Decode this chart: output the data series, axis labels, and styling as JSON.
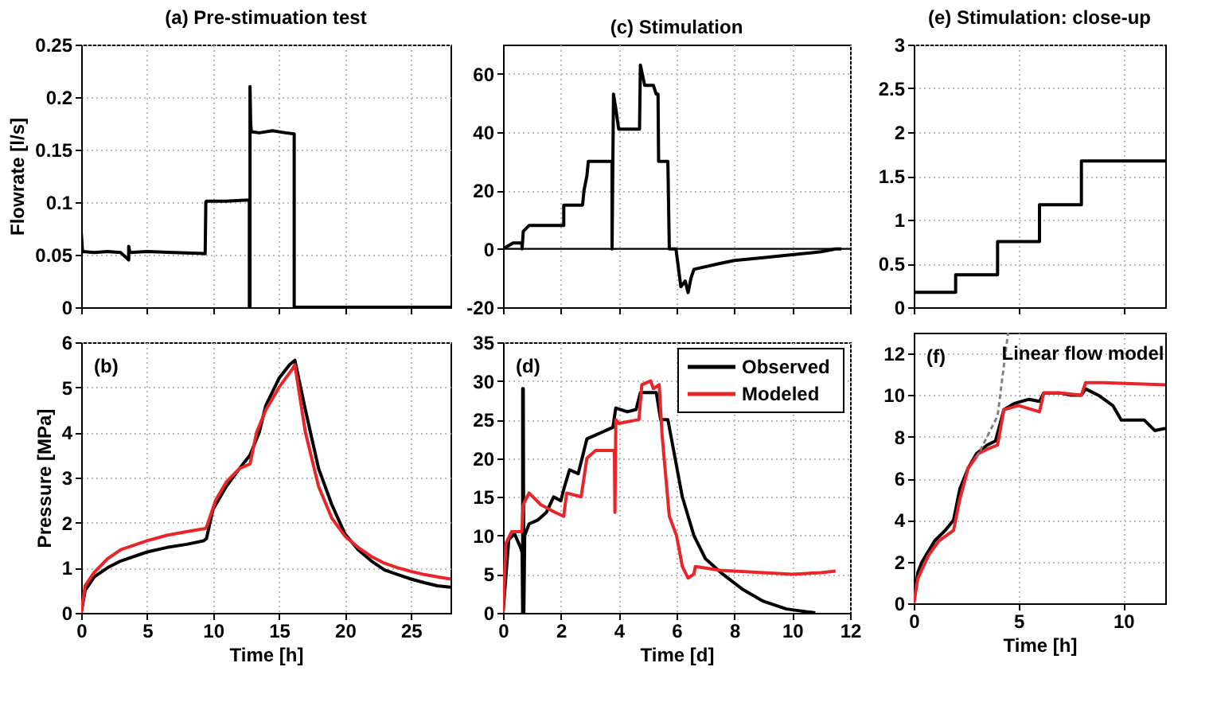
{
  "chart_data": [
    {
      "type": "line",
      "title": "(a) Pre-stimuation test",
      "ylabel": "Flowrate [l/s]",
      "xlim": [
        0,
        28
      ],
      "xticks": [
        0,
        5,
        10,
        15,
        20,
        25
      ],
      "ylim": [
        0,
        0.25
      ],
      "yticks": [
        0,
        0.05,
        0.1,
        0.15,
        0.2,
        0.25
      ],
      "grid": true,
      "tick_labels": "y",
      "series": [
        {
          "color": "#000000",
          "x": [
            0,
            0,
            0.1,
            1,
            2,
            3,
            3.6,
            3.6,
            3.7,
            5,
            7,
            9.4,
            9.45,
            9.5,
            11,
            12.7,
            12.75,
            12.75,
            12.8,
            12.8,
            12.85,
            12.9,
            13.5,
            14.5,
            15.5,
            16.15,
            16.15,
            20,
            28
          ],
          "values": [
            0,
            0.072,
            0.053,
            0.052,
            0.053,
            0.052,
            0.045,
            0.058,
            0.052,
            0.053,
            0.052,
            0.051,
            0.1,
            0.101,
            0.101,
            0.102,
            0.102,
            0,
            0,
            0.21,
            0.175,
            0.167,
            0.166,
            0.168,
            0.166,
            0.165,
            0,
            0,
            0
          ]
        }
      ]
    },
    {
      "type": "line",
      "title": "(c) Stimulation",
      "xlim": [
        0,
        12
      ],
      "xticks": [
        0,
        2,
        4,
        6,
        8,
        10,
        12
      ],
      "ylim": [
        -20,
        70
      ],
      "yticks": [
        -20,
        0,
        20,
        40,
        60
      ],
      "grid": true,
      "tick_labels": "y",
      "ref_lines": [
        {
          "axis": "y",
          "value": 0,
          "color": "#000000"
        }
      ],
      "series": [
        {
          "color": "#000000",
          "x": [
            0,
            0.35,
            0.65,
            0.66,
            0.7,
            0.9,
            2.1,
            2.1,
            2.75,
            2.8,
            2.9,
            2.95,
            3.77,
            3.77,
            3.82,
            3.9,
            4.0,
            4.72,
            4.75,
            4.9,
            5.2,
            5.3,
            5.36,
            5.38,
            5.7,
            5.75,
            5.98,
            6.15,
            6.3,
            6.4,
            6.5,
            6.6,
            7.5,
            8,
            9,
            10,
            11,
            11.5,
            11.7
          ],
          "values": [
            0,
            2,
            2,
            0,
            6,
            8,
            8,
            15,
            15,
            20,
            25,
            30,
            30,
            0,
            53,
            48,
            41,
            41,
            63,
            56,
            56,
            53,
            53,
            30,
            30,
            0,
            0,
            -13,
            -11,
            -15,
            -10,
            -7,
            -5,
            -4,
            -3,
            -2,
            -1,
            0,
            0
          ]
        }
      ]
    },
    {
      "type": "step",
      "title": "(e) Stimulation: close-up",
      "xlim": [
        0,
        12
      ],
      "xticks": [
        0,
        5,
        10
      ],
      "ylim": [
        0,
        3
      ],
      "yticks": [
        0,
        0.5,
        1,
        1.5,
        2,
        2.5,
        3
      ],
      "grid": true,
      "tick_labels": "y",
      "series": [
        {
          "color": "#000000",
          "x": [
            0,
            2,
            4,
            6,
            8,
            12
          ],
          "values": [
            0.17,
            0.37,
            0.75,
            1.17,
            1.67,
            1.67
          ]
        }
      ]
    },
    {
      "type": "line",
      "ylabel": "Pressure [MPa]",
      "xlabel": "Time [h]",
      "annotations": [
        "(b)"
      ],
      "xlim": [
        0,
        28
      ],
      "xticks": [
        0,
        5,
        10,
        15,
        20,
        25
      ],
      "ylim": [
        0,
        6
      ],
      "yticks": [
        0,
        1,
        2,
        3,
        4,
        5,
        6
      ],
      "grid": true,
      "series": [
        {
          "color": "#000000",
          "x": [
            0,
            0.3,
            1,
            2,
            3,
            5,
            6.5,
            8,
            9.3,
            9.5,
            10,
            11,
            12,
            12.8,
            13.5,
            14,
            15,
            15.8,
            16.2,
            17,
            18,
            19,
            20,
            21,
            22,
            23,
            24,
            25,
            26,
            27,
            28
          ],
          "values": [
            0,
            0.5,
            0.8,
            1.0,
            1.15,
            1.35,
            1.45,
            1.52,
            1.6,
            1.65,
            2.3,
            2.8,
            3.2,
            3.5,
            4.0,
            4.6,
            5.2,
            5.5,
            5.6,
            4.5,
            3.2,
            2.4,
            1.75,
            1.4,
            1.15,
            0.95,
            0.85,
            0.75,
            0.67,
            0.6,
            0.57
          ]
        },
        {
          "color": "#e8262a",
          "x": [
            0,
            0.3,
            1,
            2,
            3,
            5,
            6.5,
            8,
            9.4,
            9.5,
            10.2,
            11,
            12,
            12.8,
            13.3,
            14,
            15,
            16,
            16.2,
            17,
            18,
            19,
            20,
            21,
            22,
            23,
            24,
            25,
            26,
            27,
            28
          ],
          "values": [
            0,
            0.6,
            0.9,
            1.2,
            1.4,
            1.6,
            1.72,
            1.8,
            1.87,
            1.9,
            2.5,
            2.9,
            3.2,
            3.3,
            4.0,
            4.5,
            5.0,
            5.4,
            5.5,
            4.0,
            2.8,
            2.1,
            1.7,
            1.45,
            1.25,
            1.1,
            1.0,
            0.92,
            0.85,
            0.8,
            0.75
          ]
        }
      ]
    },
    {
      "type": "line",
      "xlabel": "Time [d]",
      "annotations": [
        "(d)"
      ],
      "xlim": [
        0,
        12
      ],
      "xticks": [
        0,
        2,
        4,
        6,
        8,
        10,
        12
      ],
      "ylim": [
        0,
        35
      ],
      "yticks": [
        0,
        5,
        10,
        15,
        20,
        25,
        30,
        35
      ],
      "grid": true,
      "legend": "top right",
      "series": [
        {
          "name": "Observed",
          "color": "#000000",
          "x": [
            0,
            0.2,
            0.4,
            0.6,
            0.66,
            0.68,
            0.68,
            0.7,
            0.72,
            0.75,
            0.9,
            1.2,
            1.5,
            1.75,
            2.0,
            2.1,
            2.3,
            2.6,
            2.9,
            3.2,
            3.5,
            3.8,
            3.9,
            4.3,
            4.6,
            4.75,
            5.3,
            5.45,
            5.7,
            5.9,
            6.2,
            6.6,
            7.0,
            7.6,
            8.3,
            9,
            9.8,
            10.8
          ],
          "values": [
            0,
            9.5,
            10.2,
            8.5,
            7.8,
            0,
            29,
            29,
            0,
            10,
            11.5,
            12,
            13,
            15,
            14.5,
            16,
            18.5,
            18,
            22.5,
            23,
            23.5,
            24,
            26.5,
            26,
            26.3,
            28.5,
            28.5,
            25,
            25,
            21,
            15,
            10,
            7,
            5,
            3,
            1.5,
            0.5,
            0
          ]
        },
        {
          "name": "Modeled",
          "color": "#e8262a",
          "x": [
            0,
            0.1,
            0.3,
            0.65,
            0.7,
            0.9,
            1.3,
            1.8,
            2.1,
            2.2,
            2.7,
            2.9,
            3.2,
            3.85,
            3.87,
            3.9,
            4.0,
            4.7,
            4.8,
            5.1,
            5.2,
            5.4,
            5.5,
            5.75,
            6.0,
            6.2,
            6.4,
            6.6,
            6.65,
            7.5,
            9,
            10,
            11,
            11.5
          ],
          "values": [
            0,
            9,
            10.5,
            10.5,
            14,
            15.5,
            14,
            13,
            12.5,
            15.5,
            15,
            20,
            21,
            21,
            13,
            25,
            24.5,
            25,
            29.5,
            30,
            29,
            29.5,
            23,
            12.5,
            10,
            6,
            4.5,
            5,
            6,
            5.5,
            5.2,
            5,
            5.2,
            5.4
          ]
        }
      ]
    },
    {
      "type": "line",
      "xlabel": "Time [h]",
      "annotations": [
        "(f)"
      ],
      "xlim": [
        0,
        12
      ],
      "xticks": [
        0,
        5,
        10
      ],
      "ylim": [
        0,
        13
      ],
      "yticks": [
        0,
        2,
        4,
        6,
        8,
        10,
        12
      ],
      "grid": true,
      "series": [
        {
          "color": "#000000",
          "x": [
            0,
            0.2,
            0.4,
            0.7,
            1,
            1.5,
            1.9,
            2.2,
            2.6,
            3,
            3.5,
            3.9,
            4.3,
            4.8,
            5.5,
            6.0,
            6.2,
            7,
            7.5,
            8,
            8.2,
            8.8,
            9.5,
            9.9,
            11,
            11.5,
            12
          ],
          "values": [
            0,
            1.5,
            2,
            2.5,
            3,
            3.5,
            4,
            5.5,
            6.5,
            7.2,
            7.6,
            7.8,
            9.3,
            9.6,
            9.8,
            9.7,
            10.1,
            10.1,
            10,
            10,
            10.3,
            10,
            9.5,
            8.8,
            8.8,
            8.3,
            8.4
          ]
        },
        {
          "color": "#e8262a",
          "x": [
            0,
            0.2,
            0.7,
            1.2,
            1.9,
            2.2,
            2.6,
            3.1,
            3.5,
            4,
            4.3,
            5,
            6,
            6.2,
            7,
            8,
            8.2,
            9,
            12
          ],
          "values": [
            0,
            1.2,
            2.3,
            3,
            3.5,
            5,
            6.5,
            7.2,
            7.4,
            7.6,
            9.3,
            9.5,
            9.2,
            10.1,
            10.1,
            10,
            10.6,
            10.6,
            10.5
          ]
        },
        {
          "name": "Linear flow model",
          "color": "#808080",
          "line_style": "dashed",
          "x": [
            3,
            4,
            4.5
          ],
          "values": [
            7,
            9,
            13
          ]
        }
      ]
    }
  ]
}
